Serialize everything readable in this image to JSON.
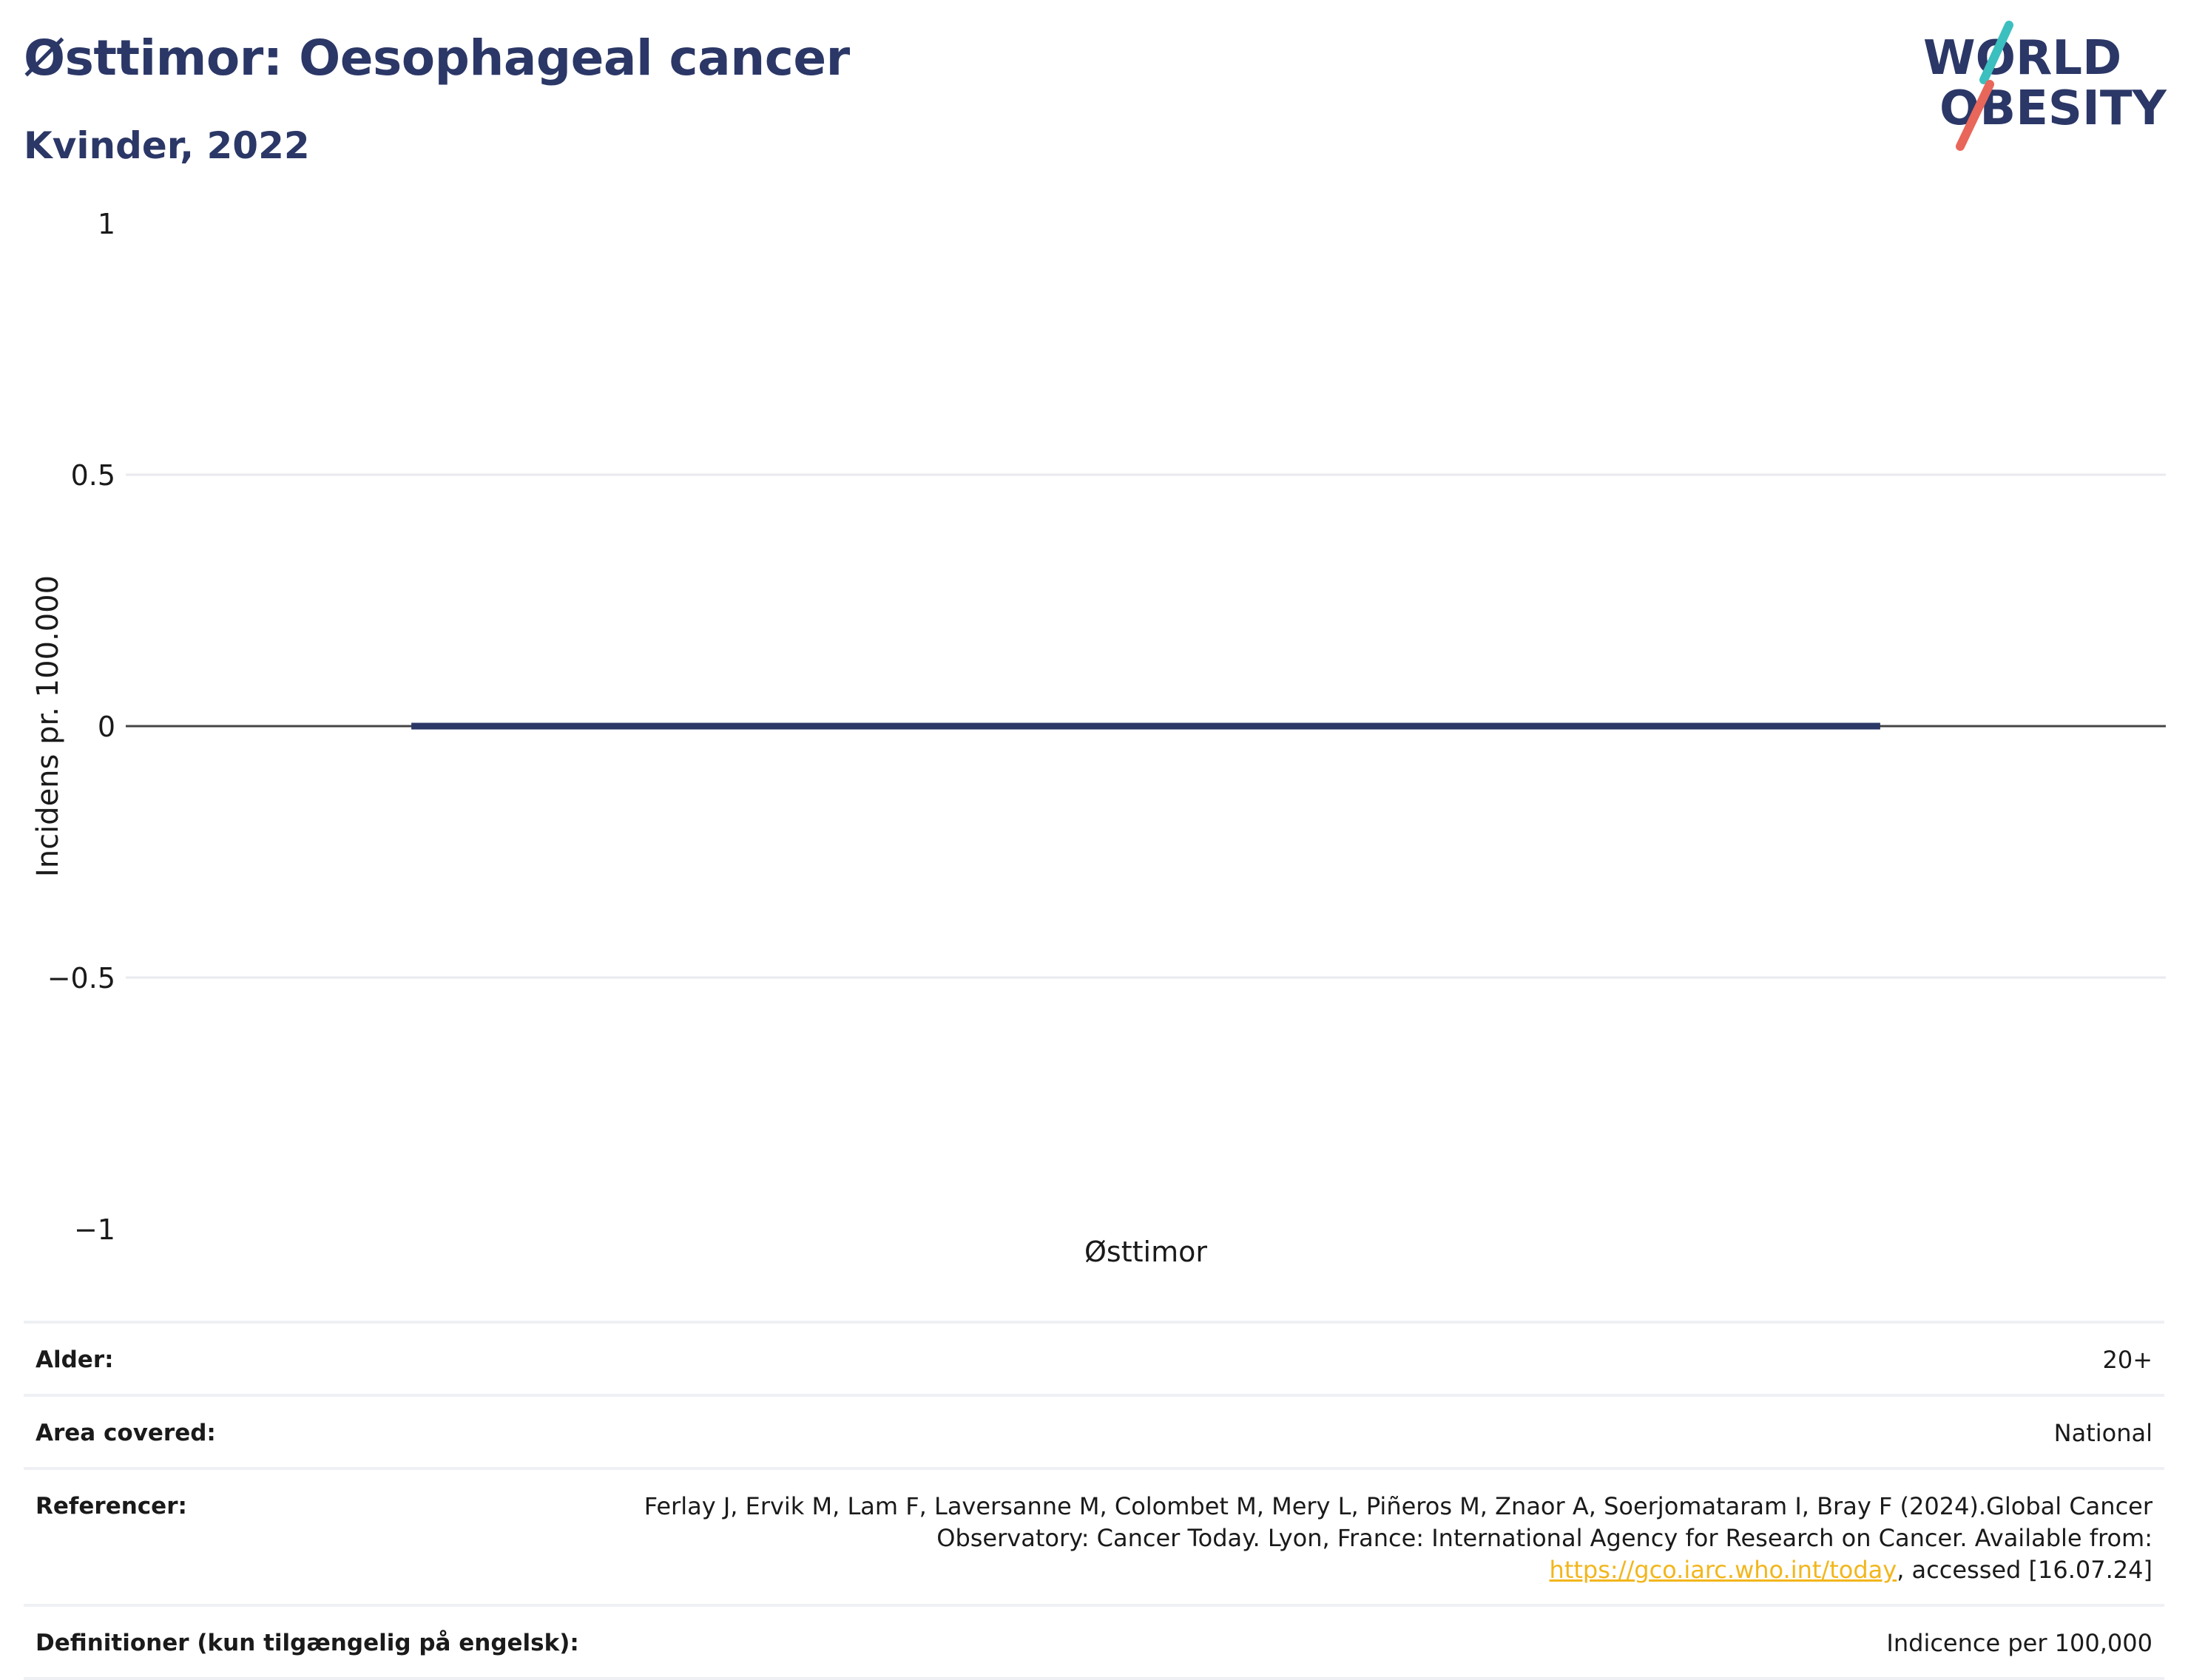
{
  "header": {
    "title": "Østtimor: Oesophageal cancer",
    "subtitle": "Kvinder, 2022"
  },
  "logo": {
    "line1": "WORLD",
    "line2": "OBESITY",
    "colors": {
      "text": "#2b3766",
      "teal": "#3cbfbf",
      "coral": "#e8665a"
    }
  },
  "chart_data": {
    "type": "bar",
    "categories": [
      "Østtimor"
    ],
    "values": [
      0
    ],
    "title": "Østtimor: Oesophageal cancer",
    "subtitle": "Kvinder, 2022",
    "xlabel": "",
    "ylabel": "Incidens pr. 100.000",
    "ylim": [
      -1,
      1
    ],
    "yticks": [
      1,
      0.5,
      0,
      -0.5,
      -1
    ],
    "ytick_labels": [
      "1",
      "0.5",
      "0",
      "−0.5",
      "−1"
    ],
    "grid": true,
    "legend": "none",
    "bar_color": "#2b3766"
  },
  "meta": {
    "rows": [
      {
        "label": "Alder:",
        "value": "20+"
      },
      {
        "label": "Area covered:",
        "value": "National"
      },
      {
        "label": "Referencer:",
        "value_pre": "Ferlay J, Ervik M, Lam F, Laversanne M, Colombet M, Mery L, Piñeros M, Znaor A, Soerjomataram I, Bray F (2024).Global Cancer Observatory: Cancer Today. Lyon, France: International Agency for Research on Cancer. Available from: ",
        "link": "https://gco.iarc.who.int/today",
        "value_post": ", accessed [16.07.24]"
      },
      {
        "label": "Definitioner (kun tilgængelig på engelsk):",
        "value": "Indicence per 100,000"
      }
    ]
  }
}
